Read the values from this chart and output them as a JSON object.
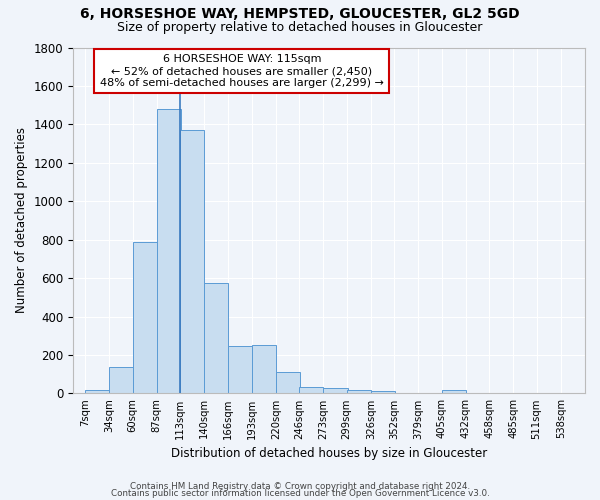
{
  "title1": "6, HORSESHOE WAY, HEMPSTED, GLOUCESTER, GL2 5GD",
  "title2": "Size of property relative to detached houses in Gloucester",
  "xlabel": "Distribution of detached houses by size in Gloucester",
  "ylabel": "Number of detached properties",
  "footer1": "Contains HM Land Registry data © Crown copyright and database right 2024.",
  "footer2": "Contains public sector information licensed under the Open Government Licence v3.0.",
  "bin_labels": [
    "7sqm",
    "34sqm",
    "60sqm",
    "87sqm",
    "113sqm",
    "140sqm",
    "166sqm",
    "193sqm",
    "220sqm",
    "246sqm",
    "273sqm",
    "299sqm",
    "326sqm",
    "352sqm",
    "379sqm",
    "405sqm",
    "432sqm",
    "458sqm",
    "485sqm",
    "511sqm",
    "538sqm"
  ],
  "bin_edges": [
    7,
    34,
    60,
    87,
    113,
    140,
    166,
    193,
    220,
    246,
    273,
    299,
    326,
    352,
    379,
    405,
    432,
    458,
    485,
    511,
    538
  ],
  "bar_heights": [
    20,
    135,
    790,
    1480,
    1370,
    575,
    245,
    250,
    110,
    35,
    30,
    20,
    15,
    0,
    0,
    20,
    0,
    0,
    0,
    0
  ],
  "bar_color": "#c8ddf0",
  "bar_edge_color": "#5b9bd5",
  "bg_color": "#f0f4fa",
  "grid_color": "#ffffff",
  "property_line_x": 113,
  "annotation_title": "6 HORSESHOE WAY: 115sqm",
  "annotation_line1": "← 52% of detached houses are smaller (2,450)",
  "annotation_line2": "48% of semi-detached houses are larger (2,299) →",
  "annotation_box_color": "#ffffff",
  "annotation_border_color": "#cc0000",
  "ylim": [
    0,
    1800
  ],
  "yticks": [
    0,
    200,
    400,
    600,
    800,
    1000,
    1200,
    1400,
    1600,
    1800
  ]
}
